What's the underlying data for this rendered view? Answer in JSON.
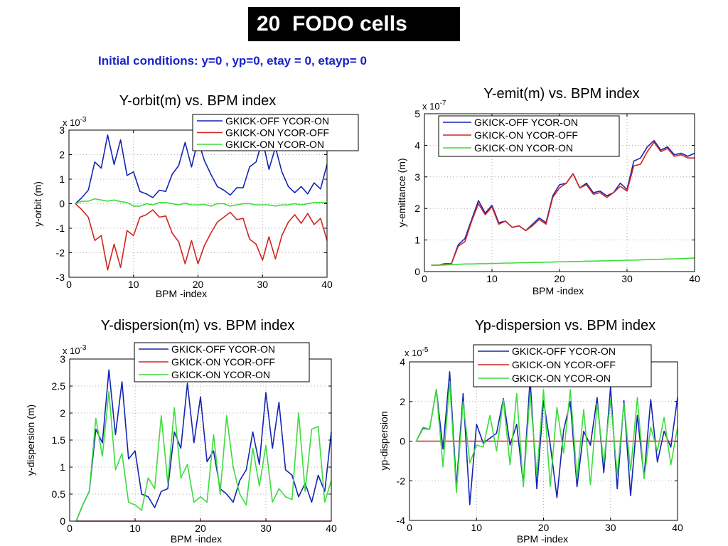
{
  "header": {
    "title": "20  FODO cells",
    "subtitle": "Initial conditions: y=0 , yp=0, etay = 0, etayp= 0"
  },
  "colors": {
    "blue": "#1524b5",
    "red": "#d4231e",
    "green": "#3ddc3d"
  },
  "chart_data": [
    {
      "type": "line",
      "title": "Y-orbit(m) vs. BPM index",
      "xlabel": "BPM -index",
      "ylabel": "y-orbit (m)",
      "multiplier": "x 10",
      "multiplier_exp": "-3",
      "xlim": [
        0,
        40
      ],
      "ylim": [
        -3,
        3
      ],
      "xticks": [
        0,
        10,
        20,
        30,
        40
      ],
      "yticks": [
        -3,
        -2,
        -1,
        0,
        1,
        2,
        3
      ],
      "grid": true,
      "legend_position": "top-right",
      "x": [
        1,
        2,
        3,
        4,
        5,
        6,
        7,
        8,
        9,
        10,
        11,
        12,
        13,
        14,
        15,
        16,
        17,
        18,
        19,
        20,
        21,
        22,
        23,
        24,
        25,
        26,
        27,
        28,
        29,
        30,
        31,
        32,
        33,
        34,
        35,
        36,
        37,
        38,
        39,
        40
      ],
      "series": [
        {
          "name": "GKICK-OFF YCOR-ON",
          "color": "#1524b5",
          "values": [
            0,
            0.25,
            0.55,
            1.7,
            1.45,
            2.8,
            1.6,
            2.6,
            1.15,
            1.3,
            0.5,
            0.4,
            0.25,
            0.55,
            0.5,
            1.2,
            1.55,
            2.5,
            1.5,
            2.6,
            1.75,
            1.2,
            0.7,
            0.55,
            0.35,
            0.65,
            0.65,
            1.5,
            1.7,
            2.6,
            1.4,
            2.3,
            1.3,
            0.7,
            0.45,
            0.7,
            0.4,
            0.85,
            0.6,
            1.6
          ]
        },
        {
          "name": "GKICK-ON YCOR-OFF",
          "color": "#d4231e",
          "values": [
            0,
            -0.25,
            -0.55,
            -1.5,
            -1.3,
            -2.7,
            -1.65,
            -2.6,
            -1.1,
            -1.3,
            -0.55,
            -0.45,
            -0.25,
            -0.55,
            -0.5,
            -1.2,
            -1.55,
            -2.45,
            -1.5,
            -2.45,
            -1.7,
            -1.2,
            -0.75,
            -0.55,
            -0.35,
            -0.65,
            -0.6,
            -1.45,
            -1.65,
            -2.3,
            -1.35,
            -2.25,
            -1.3,
            -0.75,
            -0.45,
            -0.8,
            -0.4,
            -0.85,
            -0.6,
            -1.5
          ]
        },
        {
          "name": "GKICK-ON YCOR-ON",
          "color": "#3ddc3d",
          "values": [
            0,
            0.1,
            0.1,
            0.2,
            0.15,
            0.1,
            0.15,
            0.08,
            0.05,
            -0.1,
            -0.1,
            0,
            -0.05,
            0.05,
            0.05,
            0,
            -0.05,
            0.02,
            -0.05,
            -0.05,
            -0.03,
            -0.1,
            0,
            0,
            -0.1,
            -0.05,
            0,
            0,
            -0.05,
            -0.05,
            -0.05,
            -0.1,
            -0.05,
            -0.05,
            0,
            -0.05,
            0,
            0.05,
            0.05,
            0.05
          ]
        }
      ]
    },
    {
      "type": "line",
      "title": "Y-emit(m) vs. BPM index",
      "xlabel": "BPM -index",
      "ylabel": "y-emittance (m)",
      "multiplier": "x 10",
      "multiplier_exp": "-7",
      "xlim": [
        0,
        40
      ],
      "ylim": [
        0,
        5
      ],
      "xticks": [
        0,
        10,
        20,
        30,
        40
      ],
      "yticks": [
        0,
        1,
        2,
        3,
        4,
        5
      ],
      "grid": true,
      "legend_position": "top-right",
      "x": [
        1,
        2,
        3,
        4,
        5,
        6,
        7,
        8,
        9,
        10,
        11,
        12,
        13,
        14,
        15,
        16,
        17,
        18,
        19,
        20,
        21,
        22,
        23,
        24,
        25,
        26,
        27,
        28,
        29,
        30,
        31,
        32,
        33,
        34,
        35,
        36,
        37,
        38,
        39,
        40
      ],
      "series": [
        {
          "name": "GKICK-OFF YCOR-ON",
          "color": "#1524b5",
          "values": [
            0.2,
            0.2,
            0.25,
            0.25,
            0.85,
            1.05,
            1.65,
            2.25,
            1.85,
            2.1,
            1.55,
            1.6,
            1.4,
            1.45,
            1.3,
            1.5,
            1.7,
            1.55,
            2.4,
            2.75,
            2.8,
            3.1,
            2.65,
            2.8,
            2.5,
            2.55,
            2.4,
            2.5,
            2.8,
            2.6,
            3.5,
            3.6,
            3.95,
            4.15,
            3.85,
            3.95,
            3.7,
            3.75,
            3.65,
            3.75
          ]
        },
        {
          "name": "GKICK-ON YCOR-OFF",
          "color": "#d4231e",
          "values": [
            0.2,
            0.2,
            0.25,
            0.25,
            0.8,
            0.95,
            1.6,
            2.15,
            1.8,
            2.05,
            1.5,
            1.6,
            1.4,
            1.45,
            1.3,
            1.45,
            1.65,
            1.5,
            2.35,
            2.65,
            2.8,
            3.1,
            2.65,
            2.75,
            2.45,
            2.5,
            2.35,
            2.5,
            2.7,
            2.55,
            3.35,
            3.4,
            3.8,
            4.1,
            3.8,
            3.9,
            3.65,
            3.7,
            3.6,
            3.6
          ]
        },
        {
          "name": "GKICK-ON YCOR-ON",
          "color": "#3ddc3d",
          "values": [
            0.2,
            0.2,
            0.21,
            0.22,
            0.23,
            0.24,
            0.24,
            0.25,
            0.25,
            0.26,
            0.26,
            0.27,
            0.27,
            0.28,
            0.28,
            0.29,
            0.29,
            0.3,
            0.3,
            0.31,
            0.31,
            0.32,
            0.32,
            0.33,
            0.33,
            0.34,
            0.34,
            0.35,
            0.35,
            0.36,
            0.36,
            0.37,
            0.38,
            0.38,
            0.39,
            0.4,
            0.4,
            0.41,
            0.42,
            0.43
          ]
        }
      ]
    },
    {
      "type": "line",
      "title": "Y-dispersion(m) vs. BPM index",
      "xlabel": "BPM -index",
      "ylabel": "y-dispersion (m)",
      "multiplier": "x 10",
      "multiplier_exp": "-3",
      "xlim": [
        0,
        40
      ],
      "ylim": [
        0,
        3
      ],
      "xticks": [
        0,
        10,
        20,
        30,
        40
      ],
      "yticks": [
        0,
        0.5,
        1,
        1.5,
        2,
        2.5,
        3
      ],
      "grid": true,
      "legend_position": "top-right",
      "x": [
        1,
        2,
        3,
        4,
        5,
        6,
        7,
        8,
        9,
        10,
        11,
        12,
        13,
        14,
        15,
        16,
        17,
        18,
        19,
        20,
        21,
        22,
        23,
        24,
        25,
        26,
        27,
        28,
        29,
        30,
        31,
        32,
        33,
        34,
        35,
        36,
        37,
        38,
        39,
        40
      ],
      "series": [
        {
          "name": "GKICK-OFF YCOR-ON",
          "color": "#1524b5",
          "values": [
            0,
            0.3,
            0.55,
            1.7,
            1.45,
            2.8,
            1.6,
            2.58,
            1.15,
            1.3,
            0.5,
            0.45,
            0.25,
            0.55,
            0.6,
            1.65,
            1.35,
            2.55,
            1.45,
            2.3,
            1.1,
            1.3,
            0.6,
            0.5,
            0.35,
            0.75,
            0.95,
            1.65,
            1.05,
            2.38,
            1.35,
            2.2,
            0.95,
            0.85,
            0.45,
            0.7,
            0.35,
            0.85,
            0.55,
            1.65
          ]
        },
        {
          "name": "GKICK-ON YCOR-OFF",
          "color": "#d4231e",
          "values": [
            0,
            0,
            0,
            0,
            0,
            0,
            0,
            0,
            0,
            0,
            0,
            0,
            0,
            0,
            0,
            0,
            0,
            0,
            0,
            0,
            0,
            0,
            0,
            0,
            0,
            0,
            0,
            0,
            0,
            0,
            0,
            0,
            0,
            0,
            0,
            0,
            0,
            0,
            0,
            0
          ]
        },
        {
          "name": "GKICK-ON YCOR-ON",
          "color": "#3ddc3d",
          "values": [
            0,
            0.3,
            0.55,
            1.9,
            1.2,
            2.4,
            0.95,
            1.25,
            0.35,
            0.3,
            0.2,
            0.8,
            0.6,
            1.95,
            0.7,
            2.1,
            0.8,
            1.05,
            0.35,
            0.45,
            0.35,
            1.6,
            0.5,
            1.95,
            1.0,
            0.5,
            0.3,
            1.35,
            0.65,
            1.4,
            0.35,
            0.6,
            0.45,
            0.4,
            2.0,
            0.55,
            1.7,
            1.75,
            0.35,
            0.75
          ]
        }
      ]
    },
    {
      "type": "line",
      "title": "Yp-dispersion vs. BPM index",
      "xlabel": "BPM -index",
      "ylabel": "yp-dispersion",
      "multiplier": "x 10",
      "multiplier_exp": "-5",
      "xlim": [
        0,
        40
      ],
      "ylim": [
        -4,
        4
      ],
      "xticks": [
        0,
        10,
        20,
        30,
        40
      ],
      "yticks": [
        -4,
        -2,
        0,
        2,
        4
      ],
      "grid": true,
      "legend_position": "top-right",
      "x": [
        1,
        2,
        3,
        4,
        5,
        6,
        7,
        8,
        9,
        10,
        11,
        12,
        13,
        14,
        15,
        16,
        17,
        18,
        19,
        20,
        21,
        22,
        23,
        24,
        25,
        26,
        27,
        28,
        29,
        30,
        31,
        32,
        33,
        34,
        35,
        36,
        37,
        38,
        39,
        40
      ],
      "series": [
        {
          "name": "GKICK-OFF YCOR-ON",
          "color": "#1524b5",
          "values": [
            0,
            0.65,
            0.6,
            2.6,
            -0.4,
            3.5,
            -2.3,
            2.4,
            -3.2,
            0.85,
            -0.1,
            0.15,
            0.4,
            2.15,
            -0.2,
            0.85,
            -2.2,
            3.15,
            -2.4,
            2.05,
            -0.15,
            -2.85,
            0.55,
            2.0,
            -2.3,
            0.5,
            -0.2,
            2.2,
            -1.6,
            2.75,
            -2.4,
            2.05,
            -2.75,
            1.3,
            -1.8,
            2.1,
            -1.05,
            0.5,
            -0.3,
            2.2
          ]
        },
        {
          "name": "GKICK-ON YCOR-OFF",
          "color": "#d4231e",
          "values": [
            0,
            0,
            0,
            0,
            0,
            0,
            0,
            0,
            0,
            0,
            0,
            0,
            0,
            0,
            0,
            0,
            0,
            0,
            0,
            0,
            0,
            0,
            0,
            0,
            0,
            0,
            0,
            0,
            0,
            0,
            0,
            0,
            0,
            0,
            0,
            0,
            0,
            0,
            0,
            0
          ]
        },
        {
          "name": "GKICK-ON YCOR-ON",
          "color": "#3ddc3d",
          "values": [
            0,
            0.7,
            0.6,
            2.6,
            -1.3,
            3.0,
            -2.6,
            2.0,
            -1.1,
            -0.2,
            -0.3,
            1.3,
            -0.5,
            2.1,
            -1.2,
            2.4,
            -2.3,
            2.4,
            -1.7,
            2.6,
            -2.3,
            1.7,
            -0.6,
            2.6,
            -1.9,
            1.6,
            -2.2,
            1.9,
            -1.1,
            2.1,
            -1.7,
            1.9,
            -1.5,
            2.2,
            -1.9,
            0.7,
            -0.5,
            1.2,
            -1.2,
            0.7
          ]
        }
      ]
    }
  ]
}
